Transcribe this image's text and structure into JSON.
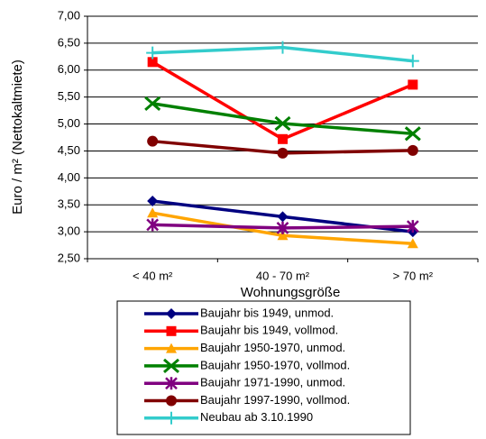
{
  "chart_data": {
    "type": "line",
    "categories": [
      "< 40 m²",
      "40 - 70 m²",
      "> 70 m²"
    ],
    "xlabel": "Wohnungsgröße",
    "ylabel": "Euro / m² (Nettokaltmiete)",
    "ylim": [
      2.5,
      7.0
    ],
    "yticks": [
      {
        "value": 2.5,
        "label": "2,50"
      },
      {
        "value": 3.0,
        "label": "3,00"
      },
      {
        "value": 3.5,
        "label": "3,50"
      },
      {
        "value": 4.0,
        "label": "4,00"
      },
      {
        "value": 4.5,
        "label": "4,50"
      },
      {
        "value": 5.0,
        "label": "5,00"
      },
      {
        "value": 5.5,
        "label": "5,50"
      },
      {
        "value": 6.0,
        "label": "6,00"
      },
      {
        "value": 6.5,
        "label": "6,50"
      },
      {
        "value": 7.0,
        "label": "7,00"
      }
    ],
    "grid": true,
    "legend": "bottom",
    "series": [
      {
        "name": "Baujahr bis 1949, unmod.",
        "color": "#000080",
        "marker": "diamond",
        "values": [
          3.57,
          3.28,
          3.0
        ]
      },
      {
        "name": "Baujahr bis 1949, vollmod.",
        "color": "#ff0000",
        "marker": "square",
        "values": [
          6.15,
          4.72,
          5.73
        ]
      },
      {
        "name": "Baujahr 1950-1970, unmod.",
        "color": "#ffa500",
        "marker": "triangle",
        "values": [
          3.35,
          2.93,
          2.78
        ]
      },
      {
        "name": "Baujahr 1950-1970, vollmod.",
        "color": "#008000",
        "marker": "x",
        "values": [
          5.38,
          5.01,
          4.82
        ]
      },
      {
        "name": "Baujahr 1971-1990, unmod.",
        "color": "#800080",
        "marker": "star",
        "values": [
          3.13,
          3.07,
          3.1
        ]
      },
      {
        "name": "Baujahr 1997-1990, vollmod.",
        "color": "#800000",
        "marker": "circle",
        "values": [
          4.68,
          4.46,
          4.51
        ]
      },
      {
        "name": "Neubau ab 3.10.1990",
        "color": "#33cccc",
        "marker": "plus",
        "values": [
          6.32,
          6.42,
          6.17
        ]
      }
    ]
  }
}
